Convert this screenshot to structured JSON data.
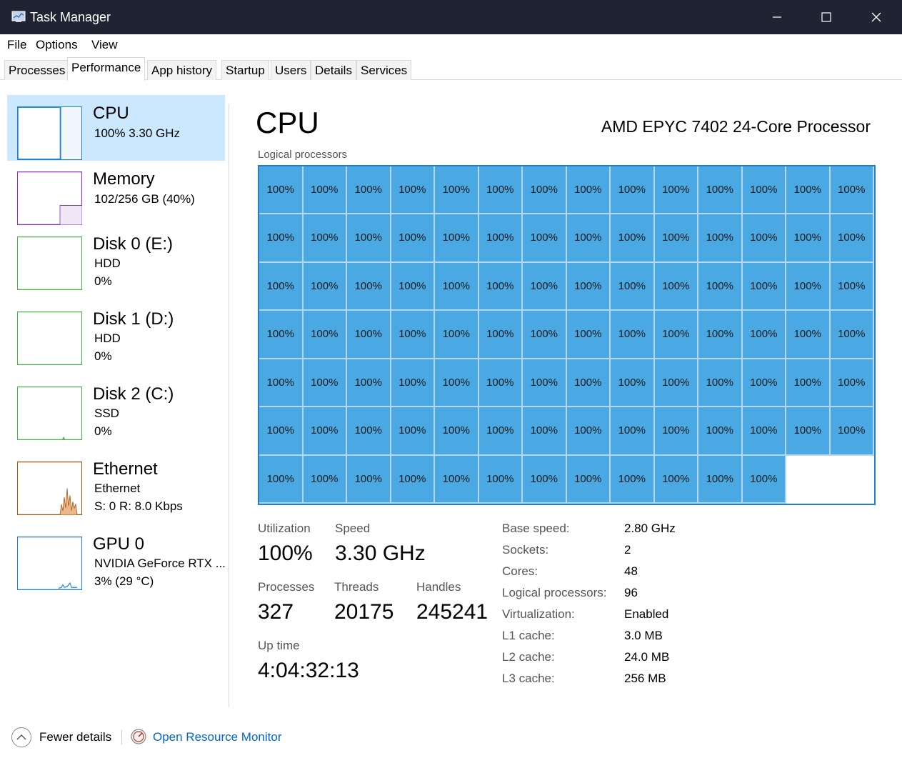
{
  "window": {
    "title": "Task Manager"
  },
  "menu": [
    "File",
    "Options",
    "View"
  ],
  "tabs": [
    "Processes",
    "Performance",
    "App history",
    "Startup",
    "Users",
    "Details",
    "Services"
  ],
  "sidebar": {
    "items": [
      {
        "name": "CPU",
        "line1": "100%  3.30 GHz",
        "line2": "",
        "color": "#1e7fd6"
      },
      {
        "name": "Memory",
        "line1": "102/256 GB (40%)",
        "line2": "",
        "color": "#8b2fc9"
      },
      {
        "name": "Disk 0 (E:)",
        "line1": "HDD",
        "line2": "0%",
        "color": "#4cb24a"
      },
      {
        "name": "Disk 1 (D:)",
        "line1": "HDD",
        "line2": "0%",
        "color": "#4cb24a"
      },
      {
        "name": "Disk 2 (C:)",
        "line1": "SSD",
        "line2": "0%",
        "color": "#4cb24a"
      },
      {
        "name": "Ethernet",
        "line1": "Ethernet",
        "line2": "S: 0  R: 8.0 Kbps",
        "color": "#a7560f"
      },
      {
        "name": "GPU 0",
        "line1": "NVIDIA GeForce RTX ...",
        "line2": "3%  (29 °C)",
        "color": "#1e7fd6"
      }
    ]
  },
  "main": {
    "title": "CPU",
    "processor": "AMD EPYC 7402 24-Core Processor",
    "lp_label": "Logical processors",
    "cell_value": "100%",
    "cell_count": 96,
    "grid_cols": 14,
    "grid_rows": 7
  },
  "stats": {
    "utilization_label": "Utilization",
    "utilization": "100%",
    "speed_label": "Speed",
    "speed": "3.30 GHz",
    "processes_label": "Processes",
    "processes": "327",
    "threads_label": "Threads",
    "threads": "20175",
    "handles_label": "Handles",
    "handles": "245241",
    "uptime_label": "Up time",
    "uptime": "4:04:32:13"
  },
  "props": [
    {
      "label": "Base speed:",
      "value": "2.80 GHz"
    },
    {
      "label": "Sockets:",
      "value": "2"
    },
    {
      "label": "Cores:",
      "value": "48"
    },
    {
      "label": "Logical processors:",
      "value": "96"
    },
    {
      "label": "Virtualization:",
      "value": "Enabled"
    },
    {
      "label": "L1 cache:",
      "value": "3.0 MB"
    },
    {
      "label": "L2 cache:",
      "value": "24.0 MB"
    },
    {
      "label": "L3 cache:",
      "value": "256 MB"
    }
  ],
  "footer": {
    "fewer": "Fewer details",
    "rm": "Open Resource Monitor"
  },
  "icons": [
    "task-manager-icon",
    "minimize-icon",
    "maximize-icon",
    "close-icon",
    "chevron-up-icon",
    "resource-monitor-icon"
  ]
}
